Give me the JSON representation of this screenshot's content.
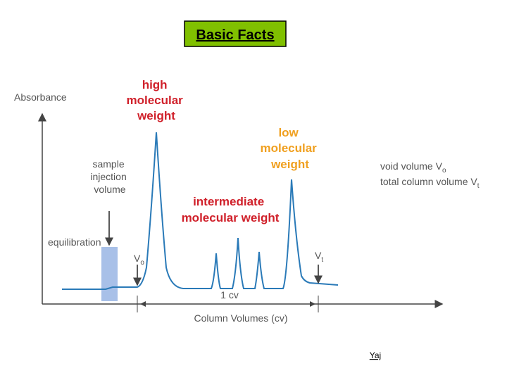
{
  "header": {
    "title": "Basic Facts"
  },
  "diagram": {
    "y_axis_label": "Absorbance",
    "x_axis_label": "Column Volumes (cv)",
    "high_label": [
      "high",
      "molecular",
      "weight"
    ],
    "low_label": [
      "low",
      "molecular",
      "weight"
    ],
    "intermediate_label": [
      "intermediate",
      "molecular weight"
    ],
    "sample_label": [
      "sample",
      "injection",
      "volume"
    ],
    "equilibration_label": "equilibration",
    "vo_marker": {
      "text": "V",
      "sub": "o"
    },
    "vt_marker": {
      "text": "V",
      "sub": "t"
    },
    "cv_label": "1 cv",
    "legend": [
      {
        "text": "void volume V",
        "sub": "o"
      },
      {
        "text": "total column volume V",
        "sub": "t"
      }
    ]
  },
  "footer": {
    "author": "Yaj"
  }
}
